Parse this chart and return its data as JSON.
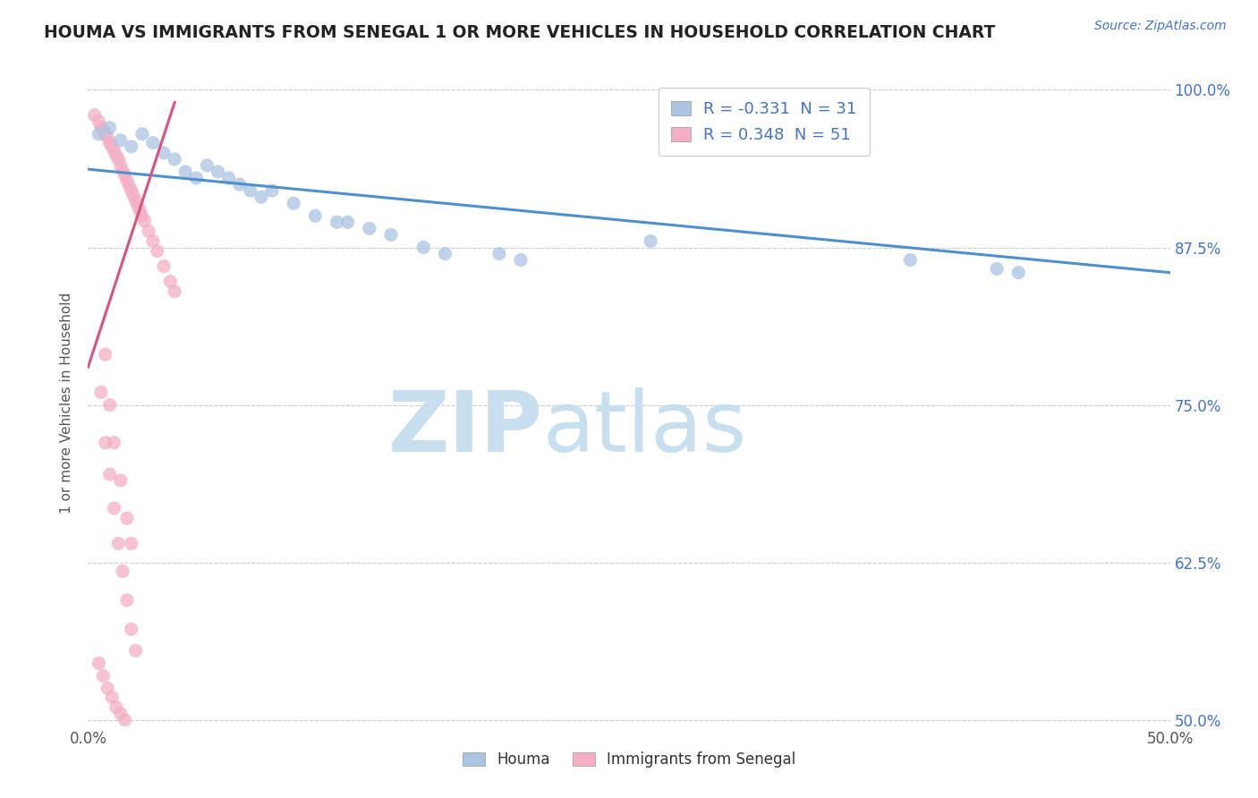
{
  "title": "HOUMA VS IMMIGRANTS FROM SENEGAL 1 OR MORE VEHICLES IN HOUSEHOLD CORRELATION CHART",
  "source_text": "Source: ZipAtlas.com",
  "ylabel": "1 or more Vehicles in Household",
  "legend_label1": "Houma",
  "legend_label2": "Immigrants from Senegal",
  "r1": -0.331,
  "n1": 31,
  "r2": 0.348,
  "n2": 51,
  "color1": "#aac4e2",
  "color2": "#f4afc4",
  "line_color1": "#4e8fcc",
  "line_color2": "#d9547a",
  "xmin": 0.0,
  "xmax": 0.5,
  "ymin": 0.495,
  "ymax": 1.008,
  "ytick_values": [
    0.5,
    0.625,
    0.75,
    0.875,
    1.0
  ],
  "ytick_labels": [
    "50.0%",
    "62.5%",
    "75.0%",
    "87.5%",
    "100.0%"
  ],
  "houma_x": [
    0.005,
    0.01,
    0.015,
    0.02,
    0.025,
    0.03,
    0.035,
    0.04,
    0.045,
    0.05,
    0.055,
    0.06,
    0.065,
    0.07,
    0.075,
    0.08,
    0.085,
    0.095,
    0.105,
    0.115,
    0.12,
    0.13,
    0.14,
    0.155,
    0.165,
    0.19,
    0.2,
    0.26,
    0.38,
    0.42,
    0.43
  ],
  "houma_y": [
    0.965,
    0.97,
    0.96,
    0.955,
    0.965,
    0.958,
    0.95,
    0.945,
    0.935,
    0.93,
    0.94,
    0.935,
    0.93,
    0.925,
    0.92,
    0.915,
    0.92,
    0.91,
    0.9,
    0.895,
    0.895,
    0.89,
    0.885,
    0.875,
    0.87,
    0.87,
    0.865,
    0.88,
    0.865,
    0.858,
    0.855
  ],
  "senegal_x": [
    0.003,
    0.005,
    0.006,
    0.007,
    0.008,
    0.009,
    0.01,
    0.011,
    0.012,
    0.013,
    0.014,
    0.015,
    0.016,
    0.017,
    0.018,
    0.019,
    0.02,
    0.021,
    0.022,
    0.023,
    0.024,
    0.025,
    0.026,
    0.028,
    0.03,
    0.032,
    0.035,
    0.038,
    0.04,
    0.008,
    0.01,
    0.012,
    0.015,
    0.018,
    0.02,
    0.006,
    0.008,
    0.01,
    0.012,
    0.014,
    0.016,
    0.018,
    0.02,
    0.022,
    0.005,
    0.007,
    0.009,
    0.011,
    0.013,
    0.015,
    0.017
  ],
  "senegal_y": [
    0.98,
    0.975,
    0.97,
    0.968,
    0.965,
    0.962,
    0.958,
    0.955,
    0.952,
    0.948,
    0.945,
    0.94,
    0.936,
    0.932,
    0.928,
    0.924,
    0.92,
    0.916,
    0.912,
    0.908,
    0.904,
    0.9,
    0.896,
    0.888,
    0.88,
    0.872,
    0.86,
    0.848,
    0.84,
    0.79,
    0.75,
    0.72,
    0.69,
    0.66,
    0.64,
    0.76,
    0.72,
    0.695,
    0.668,
    0.64,
    0.618,
    0.595,
    0.572,
    0.555,
    0.545,
    0.535,
    0.525,
    0.518,
    0.51,
    0.505,
    0.5
  ],
  "background_color": "#ffffff",
  "grid_color": "#cccccc",
  "title_color": "#222222",
  "watermark_zip": "ZIP",
  "watermark_atlas": "atlas",
  "watermark_color_zip": "#c8dff0",
  "watermark_color_atlas": "#c8dff0",
  "right_ytick_color": "#4472c4",
  "houma_line_x0": 0.0,
  "houma_line_y0": 0.937,
  "houma_line_x1": 0.5,
  "houma_line_y1": 0.855,
  "senegal_line_x0": 0.0,
  "senegal_line_y0": 0.78,
  "senegal_line_x1": 0.04,
  "senegal_line_y1": 0.99
}
